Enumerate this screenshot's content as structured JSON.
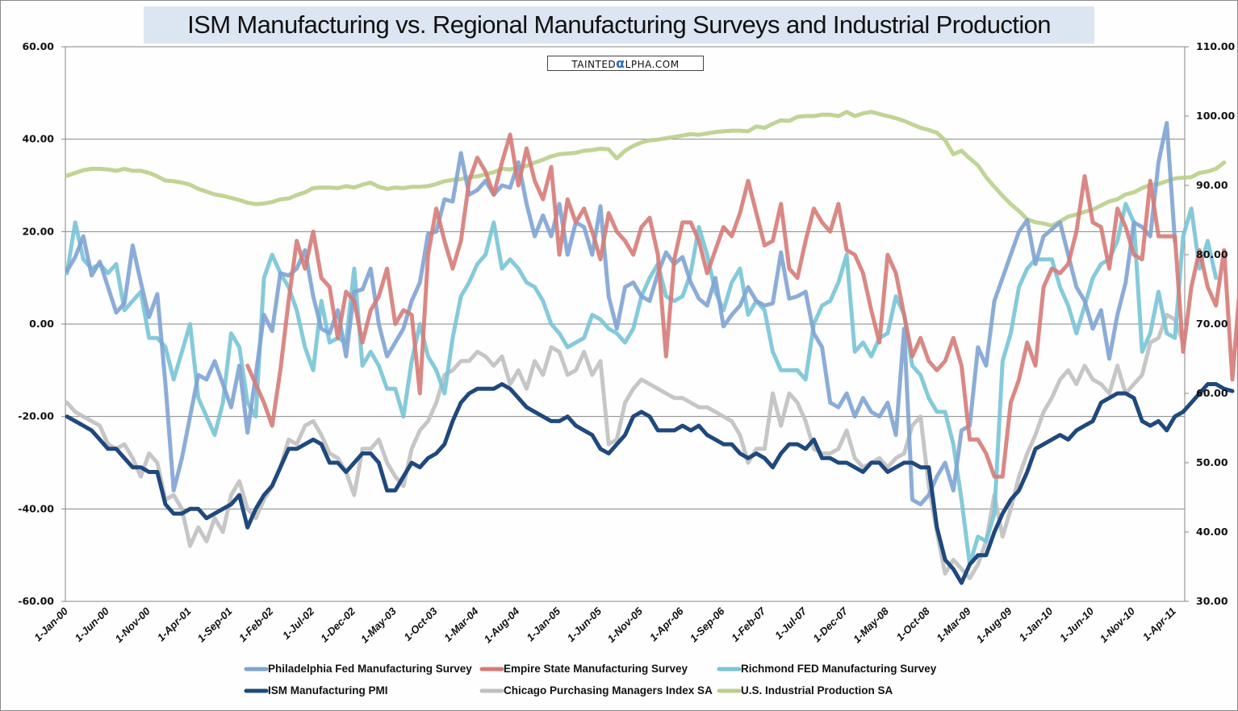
{
  "chart_data": {
    "type": "line",
    "title": "ISM Manufacturing vs. Regional Manufacturing Surveys and Industrial Production",
    "watermark": {
      "prefix": "TAINTED",
      "alpha": "α",
      "suffix": "LPHA.COM"
    },
    "xlabel": "",
    "ylabel": "",
    "y2label": "",
    "ylim": [
      -60,
      60
    ],
    "y2lim": [
      30,
      110
    ],
    "grid": true,
    "legend_position": "bottom",
    "x_start": "2000-01",
    "x_tick_labels": [
      "1-Jan-00",
      "1-Jun-00",
      "1-Nov-00",
      "1-Apr-01",
      "1-Sep-01",
      "1-Feb-02",
      "1-Jul-02",
      "1-Dec-02",
      "1-May-03",
      "1-Oct-03",
      "1-Mar-04",
      "1-Aug-04",
      "1-Jan-05",
      "1-Jun-05",
      "1-Nov-05",
      "1-Apr-06",
      "1-Sep-06",
      "1-Feb-07",
      "1-Jul-07",
      "1-Dec-07",
      "1-May-08",
      "1-Oct-08",
      "1-Mar-09",
      "1-Aug-09",
      "1-Jan-10",
      "1-Jun-10",
      "1-Nov-10",
      "1-Apr-11"
    ],
    "y_tick_labels": [
      "60.00",
      "40.00",
      "20.00",
      "0.00",
      "-20.00",
      "-40.00",
      "-60.00"
    ],
    "y2_tick_labels": [
      "110.00",
      "100.00",
      "90.00",
      "80.00",
      "70.00",
      "60.00",
      "50.00",
      "40.00",
      "30.00"
    ],
    "series": [
      {
        "name": "Philadelphia Fed Manufacturing Survey",
        "axis": "left",
        "color": "#7fa3d4",
        "start_index": 0,
        "values": [
          11.5,
          14.5,
          19,
          10.5,
          13.5,
          8,
          2.5,
          4.5,
          17,
          9,
          1.5,
          6.5,
          -13,
          -36,
          -29,
          -20,
          -11,
          -12,
          -8,
          -13,
          -18,
          -9,
          -23.5,
          -11,
          2,
          -1.5,
          11,
          10.5,
          12,
          16,
          6,
          -1,
          -2,
          3,
          -7,
          7,
          7.5,
          12,
          0,
          -7,
          -4,
          -1,
          5,
          9,
          19.5,
          20,
          27,
          26.5,
          37,
          28,
          29,
          31,
          28,
          30,
          29.5,
          35,
          26,
          19,
          23.5,
          19,
          26,
          15,
          22,
          21,
          15,
          25.5,
          6,
          -1,
          8,
          9,
          6,
          5,
          11,
          15.5,
          13,
          14.5,
          9,
          5.5,
          4,
          10,
          -0.5,
          2,
          4,
          8,
          5,
          4,
          4.5,
          15.5,
          5.5,
          6,
          7,
          -2,
          -5,
          -17,
          -18,
          -15,
          -20,
          -16,
          -19,
          -20,
          -17,
          -24,
          -1,
          -38,
          -39,
          -37,
          -33,
          -30,
          -36,
          -23,
          -22,
          -5,
          -9,
          5,
          10,
          15,
          20,
          22.5,
          13,
          19,
          20.5,
          22,
          15,
          8,
          5,
          -1,
          3,
          -7.5,
          2,
          9,
          22,
          21,
          19,
          35,
          43.5,
          18
        ]
      },
      {
        "name": "Empire State Manufacturing Survey",
        "axis": "left",
        "color": "#d67b78",
        "start_index": 22,
        "values": [
          -9,
          -13,
          -17,
          -22,
          -10,
          5,
          18,
          12,
          20,
          10,
          8,
          -3,
          7,
          5,
          -4,
          3,
          6,
          12,
          0,
          3,
          2,
          -15,
          15,
          25,
          18,
          12,
          18,
          31,
          36,
          33,
          28,
          35,
          41,
          30,
          38,
          31,
          27,
          34,
          15,
          27,
          22,
          25,
          20,
          14,
          24,
          20,
          18,
          15,
          21,
          23,
          15,
          -7,
          14,
          22,
          22,
          18,
          11,
          16,
          21,
          19,
          24,
          31,
          24,
          17,
          18,
          26,
          12,
          10,
          18,
          25,
          22,
          20,
          26,
          16,
          15,
          11,
          3,
          -4,
          15,
          11,
          2,
          -7,
          -3,
          -8,
          -10,
          -8,
          -3,
          -9,
          -25,
          -25,
          -28,
          -33,
          -33,
          -17,
          -12,
          -4,
          -9,
          8,
          12,
          11,
          13,
          20,
          32,
          22,
          21,
          12,
          25,
          21,
          15,
          14,
          31,
          19,
          19,
          19,
          -6,
          8,
          16,
          8,
          4,
          16,
          -12,
          10,
          12,
          15,
          17,
          21,
          12
        ]
      },
      {
        "name": "Richmond FED Manufacturing Survey",
        "axis": "left",
        "color": "#78c4d6",
        "start_index": 0,
        "values": [
          11,
          22,
          14,
          12,
          13,
          11,
          13,
          3,
          5,
          7,
          -3,
          -3,
          -5,
          -12,
          -6,
          0,
          -16,
          -20,
          -24,
          -17,
          -2,
          -5,
          -17,
          -20,
          10,
          15,
          11,
          8,
          3,
          -5,
          -10,
          5,
          -4,
          -3,
          -4,
          12,
          -9,
          -6,
          -9,
          -14,
          -14,
          -20,
          -8,
          0,
          -7,
          -10,
          -15,
          -3,
          6,
          9,
          13,
          15,
          22,
          12,
          14,
          12,
          9,
          8,
          5,
          0,
          -2,
          -5,
          -4,
          -3,
          2,
          1,
          -1,
          -2,
          -4,
          -1,
          6,
          10,
          13,
          6,
          5,
          6,
          11,
          21,
          15,
          7,
          3,
          9,
          12,
          2,
          5,
          3,
          -6,
          -10,
          -10,
          -10,
          -12,
          0,
          4,
          5,
          9,
          15,
          -6,
          -4,
          -7,
          -3,
          -2,
          6,
          2,
          -9,
          -11,
          -16,
          -19,
          -19,
          -26,
          -38,
          -52,
          -46,
          -47,
          -41,
          -8,
          -2,
          8,
          12,
          14,
          14,
          14,
          8,
          4,
          -2,
          4,
          10,
          13,
          14,
          18,
          26,
          22,
          -6,
          -2,
          7,
          -2,
          -3,
          19,
          25,
          12,
          18,
          10
        ]
      },
      {
        "name": "ISM Manufacturing PMI",
        "axis": "left",
        "color": "#1f497d",
        "start_index": 0,
        "values": [
          -20,
          -21,
          -22,
          -23,
          -25,
          -27,
          -27,
          -29,
          -31,
          -31,
          -32,
          -32,
          -39,
          -41,
          -41,
          -40,
          -40,
          -42,
          -41,
          -40,
          -39,
          -37,
          -44,
          -40,
          -37,
          -35,
          -31,
          -27,
          -27,
          -26,
          -25,
          -26,
          -30,
          -30,
          -32,
          -30,
          -28,
          -28,
          -30,
          -36,
          -36,
          -33,
          -30,
          -31,
          -29,
          -28,
          -26,
          -21,
          -17,
          -15,
          -14,
          -14,
          -14,
          -13,
          -14,
          -16,
          -18,
          -19,
          -20,
          -21,
          -21,
          -20,
          -22,
          -23,
          -24,
          -27,
          -28,
          -26,
          -24,
          -20,
          -19,
          -20,
          -23,
          -23,
          -23,
          -22,
          -23,
          -22,
          -24,
          -25,
          -26,
          -26,
          -28,
          -29,
          -28,
          -29,
          -31,
          -28,
          -26,
          -26,
          -27,
          -25,
          -29,
          -29,
          -30,
          -30,
          -31,
          -32,
          -30,
          -30,
          -32,
          -31,
          -30,
          -30,
          -31,
          -31,
          -44,
          -51,
          -53,
          -56,
          -52,
          -50,
          -50,
          -45,
          -41,
          -38,
          -36,
          -32,
          -27,
          -26,
          -25,
          -24,
          -25,
          -23,
          -22,
          -21,
          -17,
          -16,
          -15,
          -15,
          -16,
          -21,
          -22,
          -21,
          -23,
          -20,
          -19,
          -17,
          -15,
          -13,
          -13,
          -14,
          -14.5
        ]
      },
      {
        "name": "Chicago Purchasing Managers Index SA",
        "axis": "left",
        "color": "#c0c0c0",
        "start_index": 0,
        "values": [
          -17,
          -19,
          -20,
          -21,
          -22,
          -26,
          -27,
          -26,
          -29,
          -33,
          -28,
          -30,
          -38,
          -37,
          -40,
          -48,
          -44,
          -47,
          -42,
          -45,
          -37,
          -34,
          -40,
          -42,
          -38,
          -35,
          -31,
          -25,
          -26,
          -22,
          -21,
          -24,
          -28,
          -29,
          -32,
          -37,
          -27,
          -27,
          -25,
          -30,
          -33,
          -35,
          -27,
          -23,
          -21,
          -17,
          -11,
          -10,
          -8,
          -8,
          -6,
          -7,
          -9,
          -7,
          -13,
          -10,
          -14,
          -8,
          -11,
          -5,
          -6,
          -11,
          -10,
          -6,
          -11,
          -8,
          -26,
          -25,
          -17,
          -14,
          -12,
          -13,
          -14,
          -15,
          -16,
          -16,
          -17,
          -18,
          -18,
          -19,
          -20,
          -21,
          -24,
          -30,
          -27,
          -27,
          -15,
          -22,
          -15,
          -17,
          -21,
          -27,
          -28,
          -28,
          -27,
          -23,
          -29,
          -31,
          -30,
          -29,
          -31,
          -29,
          -28,
          -22,
          -20,
          -35,
          -45,
          -54,
          -51,
          -53,
          -55,
          -52,
          -47,
          -37,
          -46,
          -40,
          -33,
          -28,
          -24,
          -19,
          -16,
          -12,
          -10,
          -13,
          -9,
          -12,
          -13,
          -15,
          -9,
          -15,
          -13,
          -11,
          -4,
          -3,
          2,
          1,
          -4
        ]
      },
      {
        "name": "U.S. Industrial Production SA",
        "axis": "right",
        "color": "#b9cf8a",
        "start_index": 0,
        "values": [
          91.4,
          91.8,
          92.2,
          92.4,
          92.4,
          92.3,
          92.1,
          92.4,
          92.1,
          92.1,
          91.8,
          91.3,
          90.7,
          90.6,
          90.4,
          90.1,
          89.5,
          89.1,
          88.7,
          88.5,
          88.2,
          87.9,
          87.5,
          87.3,
          87.4,
          87.6,
          88.0,
          88.1,
          88.6,
          89.0,
          89.6,
          89.7,
          89.7,
          89.6,
          89.9,
          89.7,
          90.1,
          90.4,
          89.8,
          89.5,
          89.7,
          89.6,
          89.8,
          89.8,
          89.9,
          90.2,
          90.6,
          90.8,
          90.9,
          91.2,
          91.3,
          91.6,
          91.9,
          92.4,
          92.3,
          92.6,
          92.8,
          93.3,
          93.7,
          94.2,
          94.5,
          94.6,
          94.7,
          95.0,
          95.1,
          95.3,
          95.2,
          93.9,
          95.0,
          95.7,
          96.2,
          96.5,
          96.6,
          96.8,
          97.0,
          97.2,
          97.4,
          97.3,
          97.5,
          97.7,
          97.8,
          97.9,
          97.9,
          97.8,
          98.5,
          98.3,
          98.9,
          99.4,
          99.3,
          99.9,
          100.0,
          100.0,
          100.2,
          100.2,
          100.0,
          100.6,
          100.0,
          100.4,
          100.6,
          100.3,
          100.0,
          99.7,
          99.3,
          98.8,
          98.3,
          98.0,
          97.6,
          96.5,
          94.5,
          95.0,
          93.9,
          92.9,
          91.2,
          89.8,
          88.5,
          87.3,
          86.3,
          85.1,
          84.7,
          84.5,
          84.2,
          84.8,
          85.5,
          85.8,
          86.2,
          86.5,
          87.1,
          87.7,
          88.0,
          88.7,
          89.0,
          89.6,
          90.1,
          90.2,
          90.6,
          91.0,
          91.1,
          91.2,
          91.8,
          92.0,
          92.4,
          93.3
        ]
      }
    ]
  }
}
